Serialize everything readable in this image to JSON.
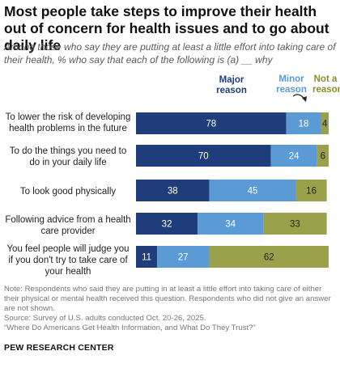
{
  "title": "Most people take steps to improve their health out of concern for health issues and to go about daily life",
  "subtitle": "Among those who say they are putting at least a little effort into taking care of their health, % who say that each of the following is (a) __ why",
  "legend": {
    "major": "Major reason",
    "minor": "Minor reason",
    "not": "Not a reason"
  },
  "colors": {
    "major": "#1f3d7a",
    "minor": "#5b9bd5",
    "not": "#9aa14a"
  },
  "chart_data": {
    "type": "bar",
    "stacked": true,
    "orientation": "horizontal",
    "categories": [
      "To lower the risk of developing health problems in the future",
      "To do the things you need to do in your daily life",
      "To look good physically",
      "Following advice from a health care provider",
      "You feel people will judge you if you don't try to take care of your health"
    ],
    "series": [
      {
        "name": "Major reason",
        "values": [
          78,
          70,
          38,
          32,
          11
        ]
      },
      {
        "name": "Minor reason",
        "values": [
          18,
          24,
          45,
          34,
          27
        ]
      },
      {
        "name": "Not a reason",
        "values": [
          4,
          6,
          16,
          33,
          62
        ]
      }
    ],
    "xlim": [
      0,
      100
    ],
    "grid": false
  },
  "notes": {
    "note": "Note: Respondents who said they are putting in at least a little effort into taking care of either their physical or mental health received this question. Respondents who did not give an answer are not shown.",
    "source": "Source: Survey of U.S. adults conducted Oct. 20-26, 2025.",
    "report": "“Where Do Americans Get Health Information, and What Do They Trust?”"
  },
  "brand": "PEW RESEARCH CENTER"
}
